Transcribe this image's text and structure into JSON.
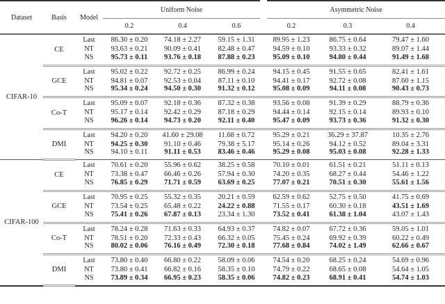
{
  "header": {
    "dataset": "Dataset",
    "basis": "Basis",
    "model": "Model",
    "uniform": "Uniform Noise",
    "asymmetric": "Asymmetric Noise",
    "rates": [
      "0.2",
      "0.4",
      "0.6",
      "0.2",
      "0.3",
      "0.4"
    ]
  },
  "datasets": [
    {
      "name": "CIFAR-10",
      "groups": [
        {
          "basis": "CE",
          "rows": [
            {
              "model": "Last",
              "cells": [
                {
                  "v": "86.30 ± 0.20",
                  "b": false
                },
                {
                  "v": "74.18 ± 2.27",
                  "b": false
                },
                {
                  "v": "59.15 ± 1.31",
                  "b": false
                },
                {
                  "v": "89.95 ± 1.23",
                  "b": false
                },
                {
                  "v": "86.75 ± 0.64",
                  "b": false
                },
                {
                  "v": "79.47 ± 1.60",
                  "b": false
                }
              ]
            },
            {
              "model": "NT",
              "cells": [
                {
                  "v": "93.63 ± 0.21",
                  "b": false
                },
                {
                  "v": "90.09 ± 0.41",
                  "b": false
                },
                {
                  "v": "82.48 ± 0.47",
                  "b": false
                },
                {
                  "v": "94.59 ± 0.10",
                  "b": false
                },
                {
                  "v": "93.33 ± 0.32",
                  "b": false
                },
                {
                  "v": "89.07 ± 1.44",
                  "b": false
                }
              ]
            },
            {
              "model": "NS",
              "cells": [
                {
                  "v": "95.73 ± 0.11",
                  "b": true
                },
                {
                  "v": "93.76 ± 0.18",
                  "b": true
                },
                {
                  "v": "87.88 ± 0.23",
                  "b": true
                },
                {
                  "v": "95.09 ± 0.10",
                  "b": true
                },
                {
                  "v": "94.80 ± 0.44",
                  "b": true
                },
                {
                  "v": "91.49 ± 1.68",
                  "b": true
                }
              ]
            }
          ]
        },
        {
          "basis": "GCE",
          "rows": [
            {
              "model": "Last",
              "cells": [
                {
                  "v": "95.02 ± 0.22",
                  "b": false
                },
                {
                  "v": "92.72 ± 0.25",
                  "b": false
                },
                {
                  "v": "86.99 ± 0.24",
                  "b": false
                },
                {
                  "v": "94.15 ± 0.45",
                  "b": false
                },
                {
                  "v": "91.55 ± 0.65",
                  "b": false
                },
                {
                  "v": "82.41 ± 1.61",
                  "b": false
                }
              ]
            },
            {
              "model": "NT",
              "cells": [
                {
                  "v": "94.81 ± 0.07",
                  "b": false
                },
                {
                  "v": "92.53 ± 0.04",
                  "b": false
                },
                {
                  "v": "87.11 ± 0.10",
                  "b": false
                },
                {
                  "v": "94.41 ± 0.17",
                  "b": false
                },
                {
                  "v": "92.72 ± 0.08",
                  "b": false
                },
                {
                  "v": "87.60 ± 1.15",
                  "b": false
                }
              ]
            },
            {
              "model": "NS",
              "cells": [
                {
                  "v": "95.34 ± 0.24",
                  "b": true
                },
                {
                  "v": "94.50 ± 0.30",
                  "b": true
                },
                {
                  "v": "91.32 ± 0.12",
                  "b": true
                },
                {
                  "v": "95.08 ± 0.09",
                  "b": true
                },
                {
                  "v": "94.11 ± 0.08",
                  "b": true
                },
                {
                  "v": "90.43 ± 0.73",
                  "b": true
                }
              ]
            }
          ]
        },
        {
          "basis": "Co-T",
          "rows": [
            {
              "model": "Last",
              "cells": [
                {
                  "v": "95.09 ± 0.07",
                  "b": false
                },
                {
                  "v": "92.18 ± 0.36",
                  "b": false
                },
                {
                  "v": "87.32 ± 0.38",
                  "b": false
                },
                {
                  "v": "93.56 ± 0.08",
                  "b": false
                },
                {
                  "v": "91.39 ± 0.29",
                  "b": false
                },
                {
                  "v": "88.79 ± 0.36",
                  "b": false
                }
              ]
            },
            {
              "model": "NT",
              "cells": [
                {
                  "v": "95.17 ± 0.14",
                  "b": false
                },
                {
                  "v": "92.42 ± 0.29",
                  "b": false
                },
                {
                  "v": "87.18 ± 0.29",
                  "b": false
                },
                {
                  "v": "94.44 ± 0.14",
                  "b": false
                },
                {
                  "v": "92.15 ± 0.14",
                  "b": false
                },
                {
                  "v": "89.93 ± 0.10",
                  "b": false
                }
              ]
            },
            {
              "model": "NS",
              "cells": [
                {
                  "v": "96.26 ± 0.14",
                  "b": true
                },
                {
                  "v": "94.73 ± 0.20",
                  "b": true
                },
                {
                  "v": "92.11 ± 0.40",
                  "b": true
                },
                {
                  "v": "95.47 ± 0.09",
                  "b": true
                },
                {
                  "v": "93.73 ± 0.36",
                  "b": true
                },
                {
                  "v": "91.32 ± 0.30",
                  "b": true
                }
              ]
            }
          ]
        },
        {
          "basis": "DMI",
          "rows": [
            {
              "model": "Last",
              "cells": [
                {
                  "v": "94.20 ± 0.20",
                  "b": false
                },
                {
                  "v": "41.60 ± 29.08",
                  "b": false
                },
                {
                  "v": "11.68 ± 0.72",
                  "b": false
                },
                {
                  "v": "95.29 ± 0.21",
                  "b": false
                },
                {
                  "v": "36.29 ± 37.87",
                  "b": false
                },
                {
                  "v": "10.35 ± 2.76",
                  "b": false
                }
              ]
            },
            {
              "model": "NT",
              "cells": [
                {
                  "v": "94.25 ± 0.30",
                  "b": true
                },
                {
                  "v": "91.10 ± 0.46",
                  "b": false
                },
                {
                  "v": "79.38 ± 5.17",
                  "b": false
                },
                {
                  "v": "95.14 ± 0.26",
                  "b": false
                },
                {
                  "v": "94.12 ± 0.52",
                  "b": false
                },
                {
                  "v": "89.04 ± 3.31",
                  "b": false
                }
              ]
            },
            {
              "model": "NS",
              "cells": [
                {
                  "v": "94.10 ± 0.11",
                  "b": false
                },
                {
                  "v": "91.11 ± 0.53",
                  "b": true
                },
                {
                  "v": "83.46 ± 0.46",
                  "b": true
                },
                {
                  "v": "95.29 ± 0.08",
                  "b": true
                },
                {
                  "v": "95.03 ± 0.08",
                  "b": true
                },
                {
                  "v": "92.28 ± 1.33",
                  "b": true
                }
              ]
            }
          ]
        }
      ]
    },
    {
      "name": "CIFAR-100",
      "groups": [
        {
          "basis": "CE",
          "rows": [
            {
              "model": "Last",
              "cells": [
                {
                  "v": "70.61 ± 0.20",
                  "b": false
                },
                {
                  "v": "55.96 ± 0.62",
                  "b": false
                },
                {
                  "v": "38.25 ± 0.58",
                  "b": false
                },
                {
                  "v": "70.10 ± 0.01",
                  "b": false
                },
                {
                  "v": "61.51 ± 0.21",
                  "b": false
                },
                {
                  "v": "51.11 ± 0.13",
                  "b": false
                }
              ]
            },
            {
              "model": "NT",
              "cells": [
                {
                  "v": "73.38 ± 0.47",
                  "b": false
                },
                {
                  "v": "66.46 ± 0.26",
                  "b": false
                },
                {
                  "v": "57.94 ± 0.30",
                  "b": false
                },
                {
                  "v": "74.20 ± 0.35",
                  "b": false
                },
                {
                  "v": "68.27 ± 0.44",
                  "b": false
                },
                {
                  "v": "54.46 ± 1.22",
                  "b": false
                }
              ]
            },
            {
              "model": "NS",
              "cells": [
                {
                  "v": "76.85 ± 0.29",
                  "b": true
                },
                {
                  "v": "71.71 ± 0.59",
                  "b": true
                },
                {
                  "v": "63.69 ± 0.25",
                  "b": true
                },
                {
                  "v": "77.07 ± 0.21",
                  "b": true
                },
                {
                  "v": "70.51 ± 0.30",
                  "b": true
                },
                {
                  "v": "55.61 ± 1.56",
                  "b": true
                }
              ]
            }
          ]
        },
        {
          "basis": "GCE",
          "rows": [
            {
              "model": "Last",
              "cells": [
                {
                  "v": "70.95 ± 0.25",
                  "b": false
                },
                {
                  "v": "55.32 ± 0.35",
                  "b": false
                },
                {
                  "v": "20.21 ± 0.59",
                  "b": false
                },
                {
                  "v": "62.59 ± 0.62",
                  "b": false
                },
                {
                  "v": "52.75 ± 0.50",
                  "b": false
                },
                {
                  "v": "41.75 ± 0.69",
                  "b": false
                }
              ]
            },
            {
              "model": "NT",
              "cells": [
                {
                  "v": "73.54 ± 0.25",
                  "b": false
                },
                {
                  "v": "65.48 ± 0.22",
                  "b": false
                },
                {
                  "v": "24.22 ± 0.88",
                  "b": true
                },
                {
                  "v": "71.55 ± 0.17",
                  "b": false
                },
                {
                  "v": "60.30 ± 0.18",
                  "b": false
                },
                {
                  "v": "43.51 ± 1.69",
                  "b": true
                }
              ]
            },
            {
              "model": "NS",
              "cells": [
                {
                  "v": "75.41 ± 0.26",
                  "b": true
                },
                {
                  "v": "67.87 ± 0.13",
                  "b": true
                },
                {
                  "v": "23.34 ± 1.30",
                  "b": false
                },
                {
                  "v": "73.52 ± 0.41",
                  "b": true
                },
                {
                  "v": "61.38 ± 1.04",
                  "b": true
                },
                {
                  "v": "43.07 ± 1.43",
                  "b": false
                }
              ]
            }
          ]
        },
        {
          "basis": "Co-T",
          "rows": [
            {
              "model": "Last",
              "cells": [
                {
                  "v": "78.24 ± 0.28",
                  "b": false
                },
                {
                  "v": "71.63 ± 0.33",
                  "b": false
                },
                {
                  "v": "64.93 ± 0.37",
                  "b": false
                },
                {
                  "v": "74.82 ± 0.07",
                  "b": false
                },
                {
                  "v": "67.72 ± 0.36",
                  "b": false
                },
                {
                  "v": "59.05 ± 1.01",
                  "b": false
                }
              ]
            },
            {
              "model": "NT",
              "cells": [
                {
                  "v": "78.51 ± 0.20",
                  "b": false
                },
                {
                  "v": "72.33 ± 0.43",
                  "b": false
                },
                {
                  "v": "66.32 ± 0.05",
                  "b": false
                },
                {
                  "v": "75.45 ± 0.24",
                  "b": false
                },
                {
                  "v": "69.92 ± 0.39",
                  "b": false
                },
                {
                  "v": "60.22 ± 0.49",
                  "b": false
                }
              ]
            },
            {
              "model": "NS",
              "cells": [
                {
                  "v": "80.02 ± 0.06",
                  "b": true
                },
                {
                  "v": "76.16 ± 0.49",
                  "b": true
                },
                {
                  "v": "72.30 ± 0.18",
                  "b": true
                },
                {
                  "v": "77.68 ± 0.84",
                  "b": true
                },
                {
                  "v": "74.02 ± 1.49",
                  "b": true
                },
                {
                  "v": "62.66 ± 0.67",
                  "b": true
                }
              ]
            }
          ]
        },
        {
          "basis": "DMI",
          "rows": [
            {
              "model": "Last",
              "cells": [
                {
                  "v": "73.80 ± 0.40",
                  "b": false
                },
                {
                  "v": "66.80 ± 0.22",
                  "b": false
                },
                {
                  "v": "58.09 ± 0.06",
                  "b": false
                },
                {
                  "v": "74.54 ± 0.20",
                  "b": false
                },
                {
                  "v": "68.25 ± 0.24",
                  "b": false
                },
                {
                  "v": "54.69 ± 0.96",
                  "b": false
                }
              ]
            },
            {
              "model": "NT",
              "cells": [
                {
                  "v": "73.80 ± 0.41",
                  "b": false
                },
                {
                  "v": "66.82 ± 0.16",
                  "b": false
                },
                {
                  "v": "58.35 ± 0.10",
                  "b": false
                },
                {
                  "v": "74.79 ± 0.22",
                  "b": false
                },
                {
                  "v": "68.65 ± 0.08",
                  "b": false
                },
                {
                  "v": "54.64 ± 1.05",
                  "b": false
                }
              ]
            },
            {
              "model": "NS",
              "cells": [
                {
                  "v": "73.89 ± 0.34",
                  "b": true
                },
                {
                  "v": "66.95 ± 0.23",
                  "b": true
                },
                {
                  "v": "58.35 ± 0.06",
                  "b": true
                },
                {
                  "v": "74.82 ± 0.23",
                  "b": true
                },
                {
                  "v": "68.91 ± 0.41",
                  "b": true
                },
                {
                  "v": "54.74 ± 1.03",
                  "b": true
                }
              ]
            }
          ]
        }
      ]
    }
  ]
}
